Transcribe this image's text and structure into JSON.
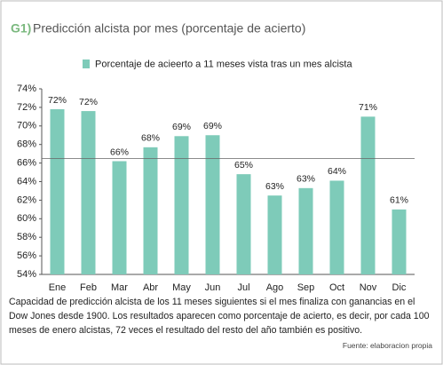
{
  "chart_data": {
    "type": "bar",
    "label": "G1)",
    "title": "Predicción alcista por mes (porcentaje de acierto)",
    "legend": "Porcentaje de acieerto a 11 meses vista tras un mes alcista",
    "categories": [
      "Ene",
      "Feb",
      "Mar",
      "Abr",
      "May",
      "Jun",
      "Jul",
      "Ago",
      "Sep",
      "Oct",
      "Nov",
      "Dic"
    ],
    "values": [
      71.8,
      71.6,
      66.2,
      67.7,
      68.9,
      69.0,
      64.8,
      62.5,
      63.3,
      64.1,
      71.0,
      61.0
    ],
    "value_labels": [
      "72%",
      "72%",
      "66%",
      "68%",
      "69%",
      "69%",
      "65%",
      "63%",
      "63%",
      "64%",
      "71%",
      "61%"
    ],
    "color": "#7ecbb9",
    "ylim": [
      54,
      74
    ],
    "yticks": [
      {
        "value": 54,
        "label": "54%"
      },
      {
        "value": 56,
        "label": "56%"
      },
      {
        "value": 58,
        "label": "58%"
      },
      {
        "value": 60,
        "label": "60%"
      },
      {
        "value": 62,
        "label": "62%"
      },
      {
        "value": 64,
        "label": "64%"
      },
      {
        "value": 66,
        "label": "66%"
      },
      {
        "value": 68,
        "label": "68%"
      },
      {
        "value": 70,
        "label": "70%"
      },
      {
        "value": 72,
        "label": "72%"
      },
      {
        "value": 74,
        "label": "74%"
      }
    ],
    "reference_line": 66.5,
    "caption": "Capacidad de predicción alcista de los 11 meses siguientes si el mes finaliza con ganancias en el Dow Jones desde 1900. Los resultados aparecen como porcentaje de acierto, es decir, por cada 100 meses de enero alcistas, 72 veces el resultado del resto del año también es positivo.",
    "source": "Fuente: elaboracion propia"
  }
}
